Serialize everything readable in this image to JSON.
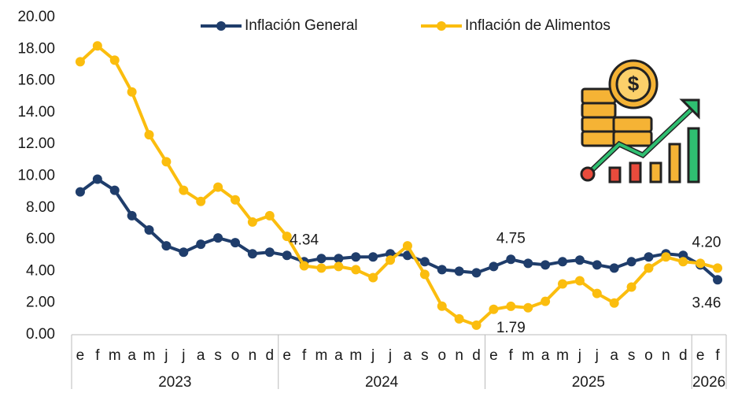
{
  "chart_data": {
    "type": "line",
    "categories": [
      "e",
      "f",
      "m",
      "a",
      "m",
      "j",
      "j",
      "a",
      "s",
      "o",
      "n",
      "d",
      "e",
      "f",
      "m",
      "a",
      "m",
      "j",
      "j",
      "a",
      "s",
      "o",
      "n",
      "d",
      "e",
      "f",
      "m",
      "a",
      "m",
      "j",
      "j",
      "a",
      "s",
      "o",
      "n",
      "d",
      "e",
      "f"
    ],
    "groups": [
      {
        "name": "2023",
        "size": 12
      },
      {
        "name": "2024",
        "size": 12
      },
      {
        "name": "2025",
        "size": 12
      },
      {
        "name": "2026",
        "size": 2
      }
    ],
    "series": [
      {
        "name": "Inflación General",
        "color": "#1f3d6b",
        "values": [
          9.0,
          9.8,
          9.1,
          7.5,
          6.6,
          5.6,
          5.2,
          5.7,
          6.1,
          5.8,
          5.1,
          5.2,
          5.0,
          4.6,
          4.8,
          4.8,
          4.9,
          4.9,
          5.1,
          5.0,
          4.6,
          4.1,
          4.0,
          3.9,
          4.3,
          4.75,
          4.5,
          4.4,
          4.6,
          4.7,
          4.4,
          4.2,
          4.6,
          4.9,
          5.1,
          5.0,
          4.4,
          3.46
        ],
        "value_labels": [
          null,
          null,
          null,
          null,
          null,
          null,
          null,
          null,
          null,
          null,
          null,
          null,
          null,
          null,
          null,
          null,
          null,
          null,
          null,
          null,
          null,
          null,
          null,
          null,
          null,
          "4.75",
          null,
          null,
          null,
          null,
          null,
          null,
          null,
          null,
          null,
          null,
          null,
          "3.46"
        ]
      },
      {
        "name": "Inflación de Alimentos",
        "color": "#fbbd0e",
        "values": [
          17.2,
          18.2,
          17.3,
          15.3,
          12.6,
          10.9,
          9.1,
          8.4,
          9.3,
          8.5,
          7.1,
          7.5,
          6.2,
          4.34,
          4.2,
          4.3,
          4.1,
          3.6,
          4.7,
          5.6,
          3.8,
          1.8,
          1.0,
          0.6,
          1.6,
          1.79,
          1.7,
          2.1,
          3.2,
          3.4,
          2.6,
          2.0,
          3.0,
          4.2,
          4.9,
          4.6,
          4.5,
          4.2
        ],
        "value_labels": [
          null,
          null,
          null,
          null,
          null,
          null,
          null,
          null,
          null,
          null,
          null,
          null,
          null,
          "4.34",
          null,
          null,
          null,
          null,
          null,
          null,
          null,
          null,
          null,
          null,
          null,
          "1.79",
          null,
          null,
          null,
          null,
          null,
          null,
          null,
          null,
          null,
          null,
          null,
          "4.20"
        ]
      }
    ],
    "ylim": [
      0,
      20
    ],
    "yticks": [
      {
        "value": 0,
        "label": "0.00"
      },
      {
        "value": 2,
        "label": "2.00"
      },
      {
        "value": 4,
        "label": "4.00"
      },
      {
        "value": 6,
        "label": "6.00"
      },
      {
        "value": 8,
        "label": "8.00"
      },
      {
        "value": 10,
        "label": "10.00"
      },
      {
        "value": 12,
        "label": "12.00"
      },
      {
        "value": 14,
        "label": "14.00"
      },
      {
        "value": 16,
        "label": "16.00"
      },
      {
        "value": 18,
        "label": "18.00"
      },
      {
        "value": 20,
        "label": "20.00"
      }
    ],
    "legend": "top"
  }
}
